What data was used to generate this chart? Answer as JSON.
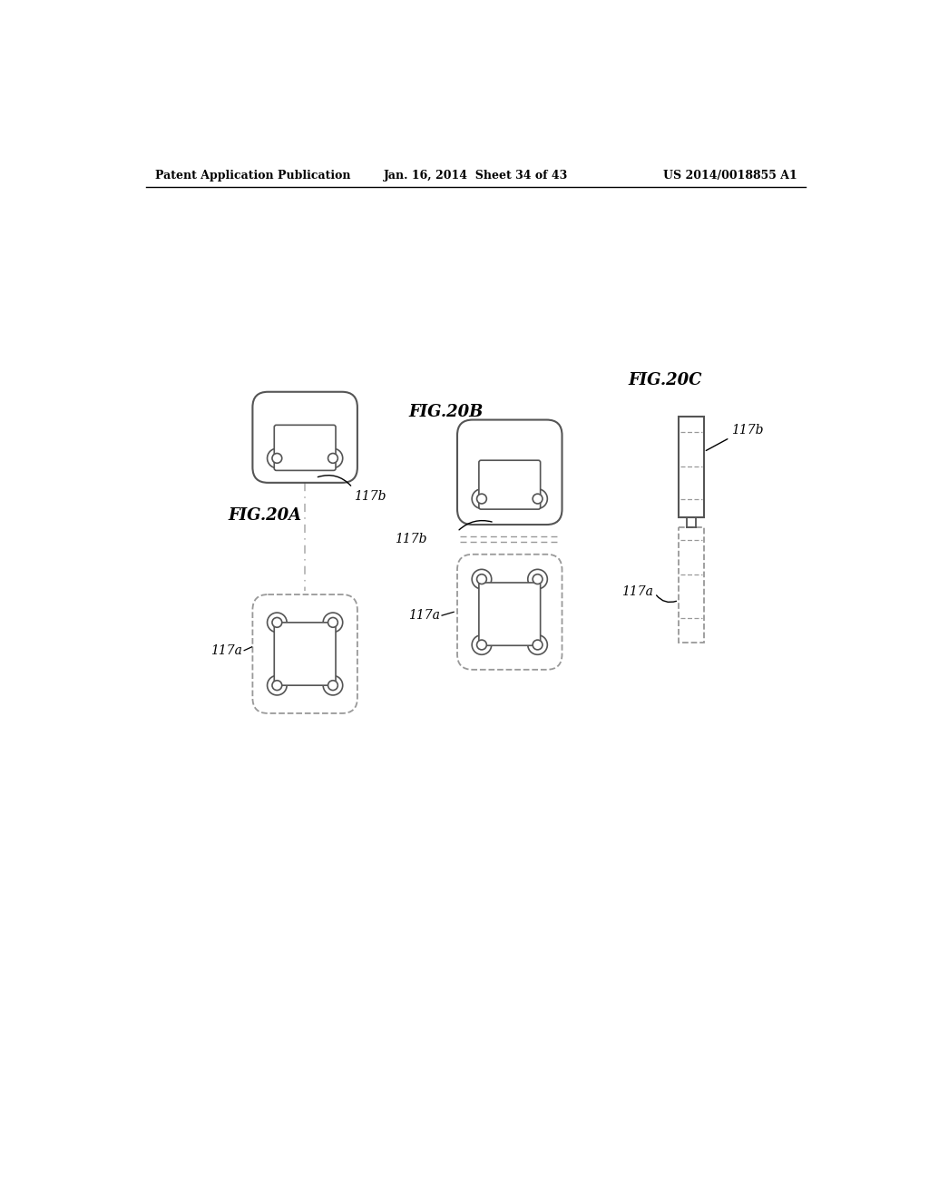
{
  "bg_color": "#ffffff",
  "line_color": "#555555",
  "dashed_color": "#999999",
  "header_left": "Patent Application Publication",
  "header_center": "Jan. 16, 2014  Sheet 34 of 43",
  "header_right": "US 2014/0018855 A1",
  "fig_a_label": "FIG.20A",
  "fig_b_label": "FIG.20B",
  "fig_c_label": "FIG.20C",
  "ref_117b": "117b",
  "ref_117a": "117a"
}
